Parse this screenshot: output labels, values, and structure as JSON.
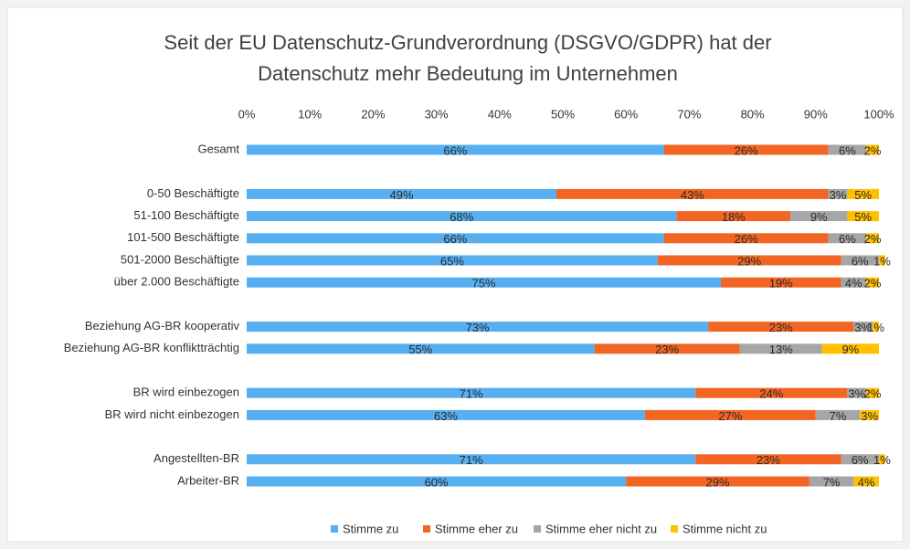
{
  "chart_data": {
    "type": "stacked-barh",
    "title": [
      "Seit der EU Datenschutz-Grundverordnung (DSGVO/GDPR) hat der",
      "Datenschutz mehr Bedeutung im Unternehmen"
    ],
    "categories": [
      "Gesamt",
      null,
      "0-50 Beschäftigte",
      "51-100 Beschäftigte",
      "101-500 Beschäftigte",
      "501-2000 Beschäftigte",
      "über 2.000 Beschäftigte",
      null,
      "Beziehung AG-BR kooperativ",
      "Beziehung AG-BR konfliktträchtig",
      null,
      "BR wird einbezogen",
      "BR wird nicht einbezogen",
      null,
      "Angestellten-BR",
      "Arbeiter-BR"
    ],
    "series": [
      {
        "name": "Stimme zu",
        "color": "#57aef0",
        "values": [
          66,
          null,
          49,
          68,
          66,
          65,
          75,
          null,
          73,
          55,
          null,
          71,
          63,
          null,
          71,
          60
        ],
        "value_labels": [
          "66%",
          null,
          "49%",
          "68%",
          "66%",
          "65%",
          "75%",
          null,
          "73%",
          "55%",
          null,
          "71%",
          "63%",
          null,
          "71%",
          "60%"
        ]
      },
      {
        "name": "Stimme eher zu",
        "color": "#f26522",
        "values": [
          26,
          null,
          43,
          18,
          26,
          29,
          19,
          null,
          23,
          23,
          null,
          24,
          27,
          null,
          23,
          29
        ],
        "value_labels": [
          "26%",
          null,
          "43%",
          "18%",
          "26%",
          "29%",
          "19%",
          null,
          "23%",
          "23%",
          null,
          "24%",
          "27%",
          null,
          "23%",
          "29%"
        ]
      },
      {
        "name": "Stimme eher nicht zu",
        "color": "#a6a6a6",
        "values": [
          6,
          null,
          3,
          9,
          6,
          6,
          4,
          null,
          3,
          13,
          null,
          3,
          7,
          null,
          6,
          7
        ],
        "value_labels": [
          "6%",
          null,
          "3%",
          "9%",
          "6%",
          "6%",
          "4%",
          null,
          "3%",
          "13%",
          null,
          "3%",
          "7%",
          null,
          "6%",
          "7%"
        ]
      },
      {
        "name": "Stimme nicht zu",
        "color": "#ffc000",
        "values": [
          2,
          null,
          5,
          5,
          2,
          1,
          2,
          null,
          1,
          9,
          null,
          2,
          3,
          null,
          1,
          4
        ],
        "value_labels": [
          "2%",
          null,
          "5%",
          "5%",
          "2%",
          "1%",
          "2%",
          null,
          "1%",
          "9%",
          null,
          "2%",
          "3%",
          null,
          "1%",
          "4%"
        ]
      }
    ],
    "xlim": [
      0,
      100
    ],
    "xticks": [
      {
        "value": 0,
        "label": "0%"
      },
      {
        "value": 10,
        "label": "10%"
      },
      {
        "value": 20,
        "label": "20%"
      },
      {
        "value": 30,
        "label": "30%"
      },
      {
        "value": 40,
        "label": "40%"
      },
      {
        "value": 50,
        "label": "50%"
      },
      {
        "value": 60,
        "label": "60%"
      },
      {
        "value": 70,
        "label": "70%"
      },
      {
        "value": 80,
        "label": "80%"
      },
      {
        "value": 90,
        "label": "90%"
      },
      {
        "value": 100,
        "label": "100%"
      }
    ],
    "grid": false,
    "legend": "bottom"
  }
}
